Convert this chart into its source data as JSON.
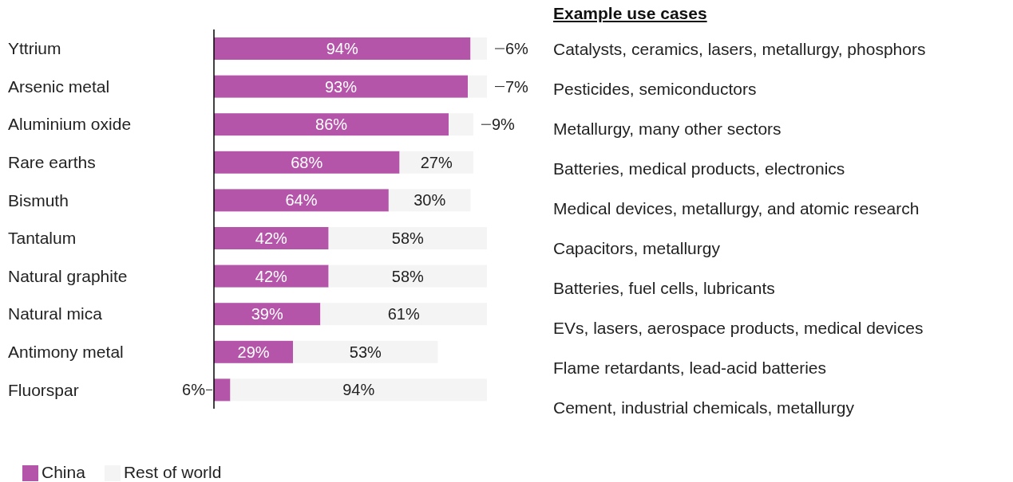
{
  "chart_data": {
    "type": "bar",
    "orientation": "horizontal",
    "stacked": true,
    "categories": [
      "Yttrium",
      "Arsenic metal",
      "Aluminium oxide",
      "Rare earths",
      "Bismuth",
      "Tantalum",
      "Natural graphite",
      "Natural mica",
      "Antimony metal",
      "Fluorspar"
    ],
    "series": [
      {
        "name": "China",
        "color": "#b455aa",
        "values": [
          94,
          93,
          86,
          68,
          64,
          42,
          42,
          39,
          29,
          6
        ],
        "value_labels": [
          "94%",
          "93%",
          "86%",
          "68%",
          "64%",
          "42%",
          "42%",
          "39%",
          "29%",
          "6%"
        ]
      },
      {
        "name": "Rest of world",
        "color": "#f4f4f4",
        "values": [
          6,
          7,
          9,
          27,
          30,
          58,
          58,
          61,
          53,
          94
        ],
        "value_labels": [
          "6%",
          "7%",
          "9%",
          "27%",
          "30%",
          "58%",
          "58%",
          "61%",
          "53%",
          "94%"
        ]
      }
    ],
    "tick_labels": "y",
    "legend": "bottom left",
    "annotations": [
      "Example use cases",
      "Catalysts, ceramics, lasers, metallurgy, phosphors",
      "Pesticides, semiconductors",
      "Metallurgy, many other sectors",
      "Batteries, medical products, electronics",
      "Medical devices, metallurgy, and atomic research",
      "Capacitors, metallurgy",
      "Batteries, fuel cells, lubricants",
      "EVs, lasers, aerospace products, medical devices",
      "Flame retardants, lead-acid batteries",
      "Cement, industrial chemicals, metallurgy"
    ]
  }
}
